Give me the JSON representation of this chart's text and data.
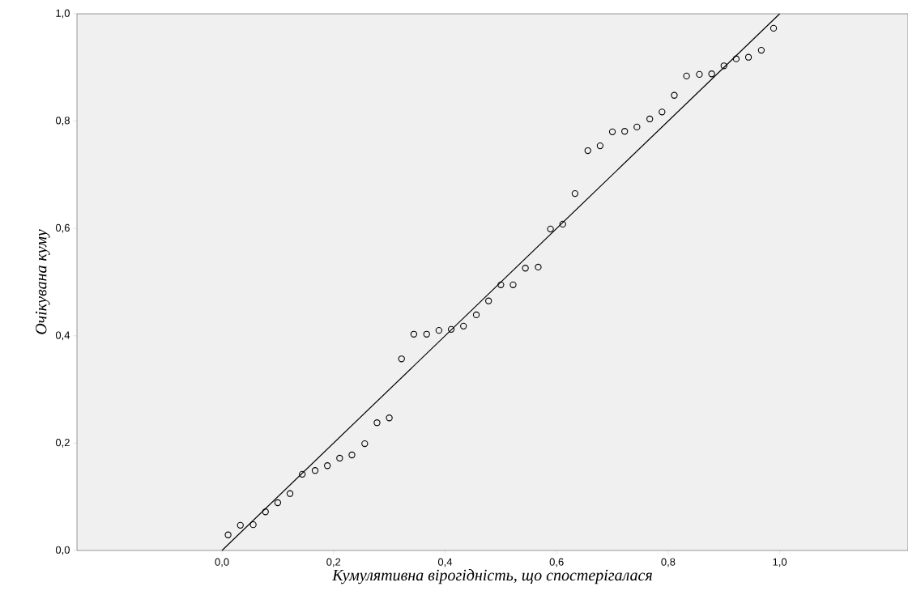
{
  "chart_data": {
    "type": "scatter",
    "xlabel": "Кумулятивна вірогідність, що спостерігалася",
    "ylabel": "Очікувана куму",
    "xlim": [
      -0.26,
      1.23
    ],
    "ylim": [
      0,
      1
    ],
    "xticks": [
      {
        "value": 0,
        "label": "0,0"
      },
      {
        "value": 0.2,
        "label": "0,2"
      },
      {
        "value": 0.4,
        "label": "0,4"
      },
      {
        "value": 0.6,
        "label": "0,6"
      },
      {
        "value": 0.8,
        "label": "0,8"
      },
      {
        "value": 1,
        "label": "1,0"
      }
    ],
    "yticks": [
      {
        "value": 0,
        "label": "0,0"
      },
      {
        "value": 0.2,
        "label": "0,2"
      },
      {
        "value": 0.4,
        "label": "0,4"
      },
      {
        "value": 0.6,
        "label": "0,6"
      },
      {
        "value": 0.8,
        "label": "0,8"
      },
      {
        "value": 1,
        "label": "1,0"
      }
    ],
    "series": [
      {
        "color": "#000000",
        "marker": "circle",
        "x": [
          0.011,
          0.033,
          0.056,
          0.078,
          0.1,
          0.122,
          0.144,
          0.167,
          0.189,
          0.211,
          0.233,
          0.256,
          0.278,
          0.3,
          0.322,
          0.344,
          0.367,
          0.389,
          0.411,
          0.433,
          0.456,
          0.478,
          0.5,
          0.522,
          0.544,
          0.567,
          0.589,
          0.611,
          0.633,
          0.656,
          0.678,
          0.7,
          0.722,
          0.744,
          0.767,
          0.789,
          0.811,
          0.833,
          0.856,
          0.878,
          0.9,
          0.922,
          0.944,
          0.967,
          0.989
        ],
        "values": [
          0.029,
          0.047,
          0.048,
          0.072,
          0.089,
          0.106,
          0.142,
          0.149,
          0.158,
          0.172,
          0.178,
          0.199,
          0.238,
          0.247,
          0.357,
          0.403,
          0.403,
          0.41,
          0.412,
          0.418,
          0.439,
          0.465,
          0.495,
          0.495,
          0.526,
          0.528,
          0.599,
          0.608,
          0.665,
          0.745,
          0.754,
          0.78,
          0.781,
          0.789,
          0.804,
          0.817,
          0.848,
          0.884,
          0.887,
          0.888,
          0.903,
          0.916,
          0.919,
          0.932,
          0.973
        ]
      },
      {
        "type": "line",
        "color": "#000000",
        "line_style": "solid",
        "marker": "none",
        "x": [
          0,
          1
        ],
        "values": [
          0,
          1
        ]
      }
    ]
  }
}
